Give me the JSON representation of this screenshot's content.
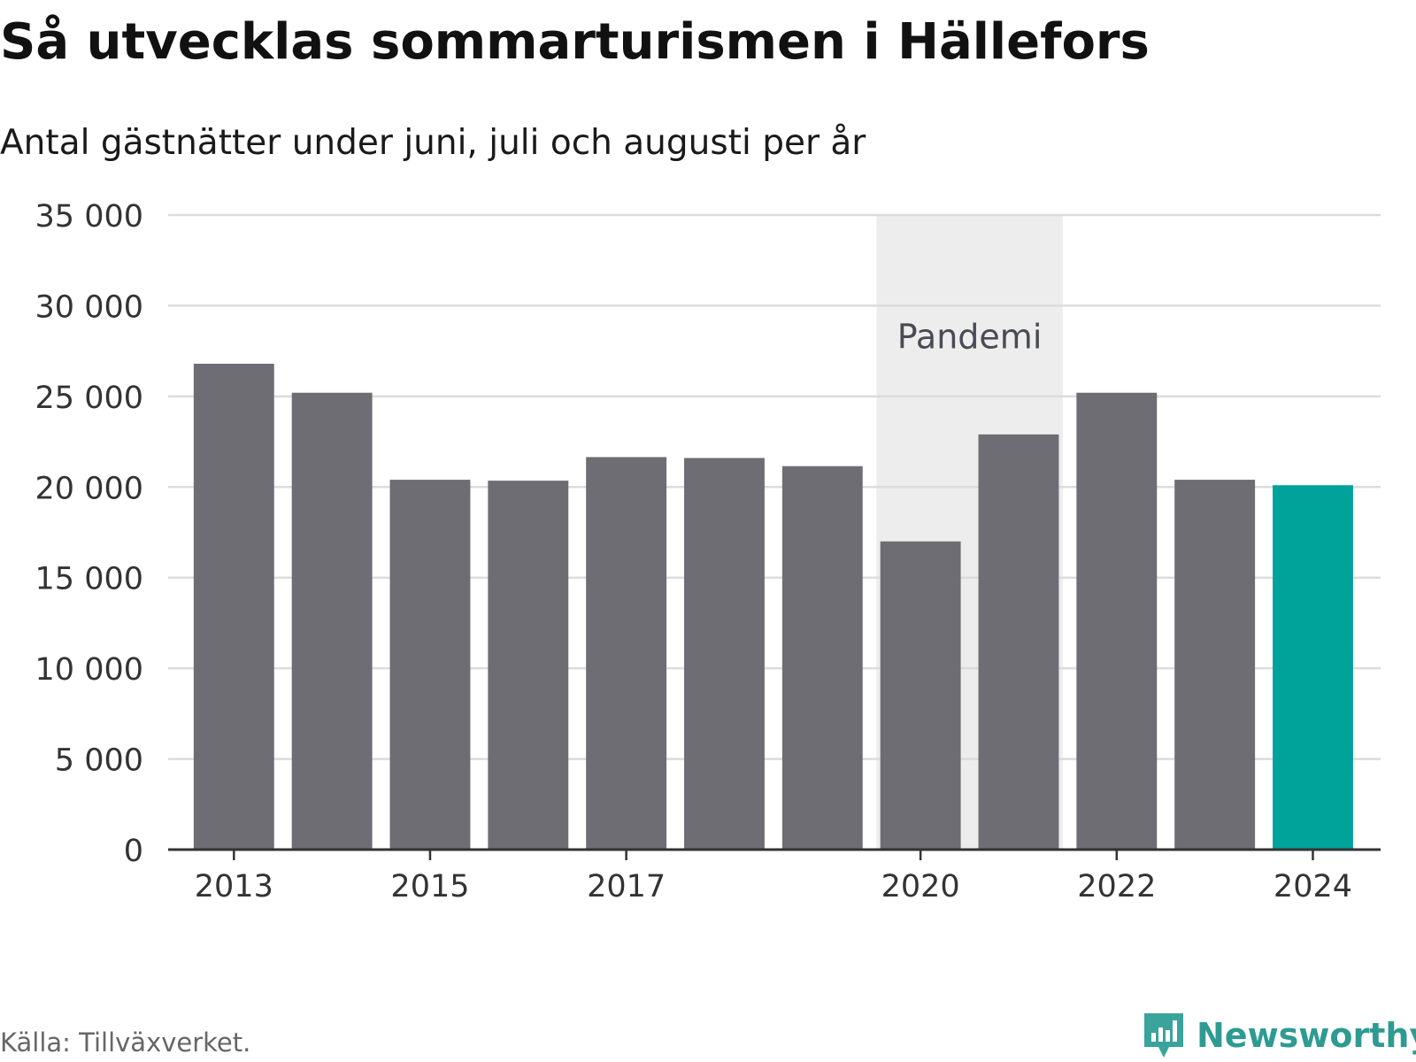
{
  "title": "Så utvecklas sommarturismen i Hällefors",
  "subtitle": "Antal gästnätter under juni, juli och augusti per år",
  "source": "Källa: Tillväxverket.",
  "brand": "Newsworthy",
  "colors": {
    "bar": "#6e6d73",
    "highlight": "#00a39a",
    "shade": "#ededed",
    "grid": "#dcdcdc",
    "axis": "#333333",
    "brand": "#2e9b93"
  },
  "chart_data": {
    "type": "bar",
    "title": "Så utvecklas sommarturismen i Hällefors",
    "subtitle": "Antal gästnätter under juni, juli och augusti per år",
    "categories": [
      "2013",
      "2014",
      "2015",
      "2016",
      "2017",
      "2018",
      "2019",
      "2020",
      "2021",
      "2022",
      "2023",
      "2024"
    ],
    "values": [
      26800,
      25200,
      20400,
      20350,
      21650,
      21600,
      21150,
      17000,
      22900,
      25200,
      20400,
      20100
    ],
    "highlight_index": 11,
    "ylim": [
      0,
      35000
    ],
    "yticks": [
      0,
      5000,
      10000,
      15000,
      20000,
      25000,
      30000,
      35000
    ],
    "ytick_labels": [
      "0",
      "5 000",
      "10 000",
      "15 000",
      "20 000",
      "25 000",
      "30 000",
      "35 000"
    ],
    "xtick_labels": [
      "2013",
      "2015",
      "2017",
      "2020",
      "2022",
      "2024"
    ],
    "annotation": {
      "label": "Pandemi",
      "from": "2020",
      "to": "2021"
    },
    "grid": true,
    "xlabel": "",
    "ylabel": ""
  }
}
